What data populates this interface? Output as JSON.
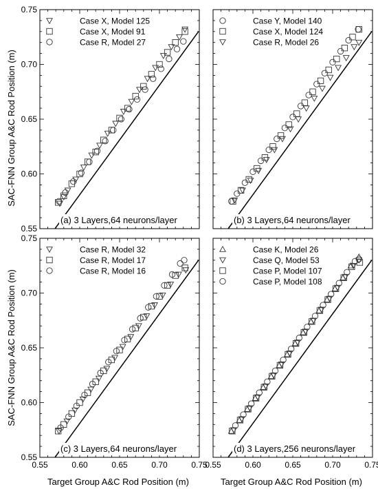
{
  "figure": {
    "xlabel": "Target Group A&C Rod Position (m)",
    "ylabel": "SAC-FNN Group A&C Rod Position (m)",
    "tick_labels": [
      "0.55",
      "0.60",
      "0.65",
      "0.70",
      "0.75"
    ]
  },
  "chart_data": [
    {
      "type": "scatter",
      "annotation": "(a) 3 Layers,64 neurons/layer",
      "xlim": [
        0.55,
        0.75
      ],
      "ylim": [
        0.55,
        0.75
      ],
      "reference_line": "y = x",
      "legend_position": "top-left",
      "series": [
        {
          "name": "Case X, Model 125",
          "marker": "triangle-down",
          "x": [
            0.575,
            0.58,
            0.585,
            0.595,
            0.605,
            0.615,
            0.625,
            0.635,
            0.645,
            0.655,
            0.665,
            0.675,
            0.685,
            0.695,
            0.705,
            0.715,
            0.725,
            0.732
          ],
          "y": [
            0.573,
            0.579,
            0.585,
            0.595,
            0.606,
            0.617,
            0.626,
            0.637,
            0.646,
            0.657,
            0.666,
            0.677,
            0.687,
            0.697,
            0.708,
            0.716,
            0.725,
            0.732
          ]
        },
        {
          "name": "Case X, Model 91",
          "marker": "square",
          "x": [
            0.573,
            0.58,
            0.59,
            0.6,
            0.61,
            0.62,
            0.63,
            0.64,
            0.65,
            0.66,
            0.67,
            0.68,
            0.69,
            0.7,
            0.71,
            0.72,
            0.732
          ],
          "y": [
            0.574,
            0.58,
            0.591,
            0.6,
            0.611,
            0.62,
            0.631,
            0.64,
            0.651,
            0.66,
            0.671,
            0.68,
            0.691,
            0.7,
            0.711,
            0.72,
            0.73
          ]
        },
        {
          "name": "Case R, Model 27",
          "marker": "circle",
          "x": [
            0.574,
            0.582,
            0.592,
            0.602,
            0.612,
            0.622,
            0.632,
            0.642,
            0.652,
            0.662,
            0.672,
            0.682,
            0.692,
            0.702,
            0.712,
            0.722,
            0.73
          ],
          "y": [
            0.575,
            0.583,
            0.593,
            0.601,
            0.611,
            0.621,
            0.63,
            0.64,
            0.65,
            0.659,
            0.668,
            0.677,
            0.687,
            0.696,
            0.705,
            0.714,
            0.721
          ]
        }
      ]
    },
    {
      "type": "scatter",
      "annotation": "(b) 3 Layers,64 neurons/layer",
      "xlim": [
        0.55,
        0.75
      ],
      "ylim": [
        0.55,
        0.75
      ],
      "reference_line": "y = x",
      "legend_position": "top-left",
      "series": [
        {
          "name": "Case Y, Model 140",
          "marker": "circle",
          "x": [
            0.573,
            0.58,
            0.59,
            0.6,
            0.61,
            0.62,
            0.63,
            0.64,
            0.65,
            0.66,
            0.67,
            0.68,
            0.69,
            0.7,
            0.71,
            0.72,
            0.732
          ],
          "y": [
            0.575,
            0.582,
            0.592,
            0.602,
            0.612,
            0.622,
            0.632,
            0.642,
            0.652,
            0.662,
            0.672,
            0.682,
            0.692,
            0.702,
            0.712,
            0.722,
            0.732
          ]
        },
        {
          "name": "Case X, Model 124",
          "marker": "square",
          "x": [
            0.575,
            0.585,
            0.595,
            0.605,
            0.615,
            0.625,
            0.635,
            0.645,
            0.655,
            0.665,
            0.675,
            0.685,
            0.695,
            0.705,
            0.715,
            0.725,
            0.733
          ],
          "y": [
            0.575,
            0.585,
            0.595,
            0.605,
            0.615,
            0.625,
            0.635,
            0.645,
            0.655,
            0.665,
            0.675,
            0.685,
            0.695,
            0.705,
            0.715,
            0.725,
            0.732
          ]
        },
        {
          "name": "Case R, Model 26",
          "marker": "triangle-down",
          "x": [
            0.577,
            0.587,
            0.597,
            0.607,
            0.617,
            0.627,
            0.637,
            0.647,
            0.657,
            0.667,
            0.677,
            0.687,
            0.697,
            0.707,
            0.717,
            0.727,
            0.733
          ],
          "y": [
            0.576,
            0.585,
            0.594,
            0.603,
            0.613,
            0.622,
            0.632,
            0.641,
            0.65,
            0.66,
            0.669,
            0.678,
            0.688,
            0.697,
            0.706,
            0.716,
            0.72
          ]
        }
      ]
    },
    {
      "type": "scatter",
      "annotation": "(c) 3 Layers,64 neurons/layer",
      "xlim": [
        0.55,
        0.75
      ],
      "ylim": [
        0.55,
        0.75
      ],
      "reference_line": "y = x",
      "legend_position": "top-left",
      "series": [
        {
          "name": "Case R, Model 32",
          "marker": "triangle-down",
          "x": [
            0.574,
            0.584,
            0.594,
            0.604,
            0.614,
            0.624,
            0.634,
            0.644,
            0.654,
            0.664,
            0.674,
            0.684,
            0.694,
            0.704,
            0.714,
            0.724,
            0.733
          ],
          "y": [
            0.574,
            0.583,
            0.593,
            0.603,
            0.612,
            0.622,
            0.631,
            0.641,
            0.651,
            0.66,
            0.67,
            0.679,
            0.689,
            0.698,
            0.708,
            0.717,
            0.721
          ]
        },
        {
          "name": "Case R, Model 17",
          "marker": "square",
          "x": [
            0.573,
            0.58,
            0.59,
            0.6,
            0.61,
            0.62,
            0.63,
            0.64,
            0.65,
            0.66,
            0.67,
            0.68,
            0.69,
            0.7,
            0.71,
            0.72,
            0.732
          ],
          "y": [
            0.574,
            0.58,
            0.59,
            0.6,
            0.609,
            0.619,
            0.629,
            0.639,
            0.648,
            0.658,
            0.668,
            0.678,
            0.688,
            0.697,
            0.707,
            0.716,
            0.723
          ]
        },
        {
          "name": "Case R, Model 16",
          "marker": "circle",
          "x": [
            0.576,
            0.586,
            0.596,
            0.606,
            0.616,
            0.626,
            0.636,
            0.646,
            0.656,
            0.666,
            0.676,
            0.686,
            0.696,
            0.706,
            0.716,
            0.726,
            0.731
          ],
          "y": [
            0.577,
            0.587,
            0.597,
            0.607,
            0.617,
            0.627,
            0.637,
            0.647,
            0.657,
            0.667,
            0.677,
            0.687,
            0.697,
            0.707,
            0.717,
            0.727,
            0.73
          ]
        }
      ]
    },
    {
      "type": "scatter",
      "annotation": "(d) 3 Layers,256 neurons/layer",
      "xlim": [
        0.55,
        0.75
      ],
      "ylim": [
        0.55,
        0.75
      ],
      "reference_line": "y = x",
      "legend_position": "top-left",
      "series": [
        {
          "name": "Case K, Model 26",
          "marker": "triangle-up",
          "x": [
            0.573,
            0.583,
            0.593,
            0.603,
            0.613,
            0.623,
            0.633,
            0.643,
            0.653,
            0.663,
            0.673,
            0.683,
            0.693,
            0.703,
            0.713,
            0.723,
            0.733
          ],
          "y": [
            0.574,
            0.584,
            0.594,
            0.604,
            0.614,
            0.624,
            0.634,
            0.644,
            0.654,
            0.664,
            0.674,
            0.684,
            0.694,
            0.704,
            0.714,
            0.725,
            0.733
          ]
        },
        {
          "name": "Case Q, Model 53",
          "marker": "triangle-down",
          "x": [
            0.576,
            0.586,
            0.596,
            0.606,
            0.616,
            0.626,
            0.636,
            0.646,
            0.656,
            0.666,
            0.676,
            0.686,
            0.696,
            0.706,
            0.716,
            0.726,
            0.733
          ],
          "y": [
            0.575,
            0.585,
            0.595,
            0.605,
            0.615,
            0.625,
            0.635,
            0.645,
            0.655,
            0.665,
            0.675,
            0.685,
            0.695,
            0.705,
            0.715,
            0.725,
            0.73
          ]
        },
        {
          "name": "Case P, Model 107",
          "marker": "square",
          "x": [
            0.574,
            0.584,
            0.594,
            0.604,
            0.614,
            0.624,
            0.634,
            0.644,
            0.654,
            0.664,
            0.674,
            0.684,
            0.694,
            0.704,
            0.714,
            0.724,
            0.734
          ],
          "y": [
            0.574,
            0.584,
            0.594,
            0.604,
            0.614,
            0.624,
            0.634,
            0.644,
            0.654,
            0.664,
            0.674,
            0.684,
            0.694,
            0.704,
            0.714,
            0.724,
            0.728
          ]
        },
        {
          "name": "Case P, Model 108",
          "marker": "circle",
          "x": [
            0.578,
            0.588,
            0.598,
            0.608,
            0.618,
            0.628,
            0.638,
            0.648,
            0.658,
            0.668,
            0.678,
            0.688,
            0.698,
            0.708,
            0.718,
            0.728,
            0.733
          ],
          "y": [
            0.579,
            0.589,
            0.599,
            0.609,
            0.619,
            0.629,
            0.639,
            0.649,
            0.659,
            0.669,
            0.679,
            0.689,
            0.699,
            0.709,
            0.719,
            0.729,
            0.731
          ]
        }
      ]
    }
  ]
}
